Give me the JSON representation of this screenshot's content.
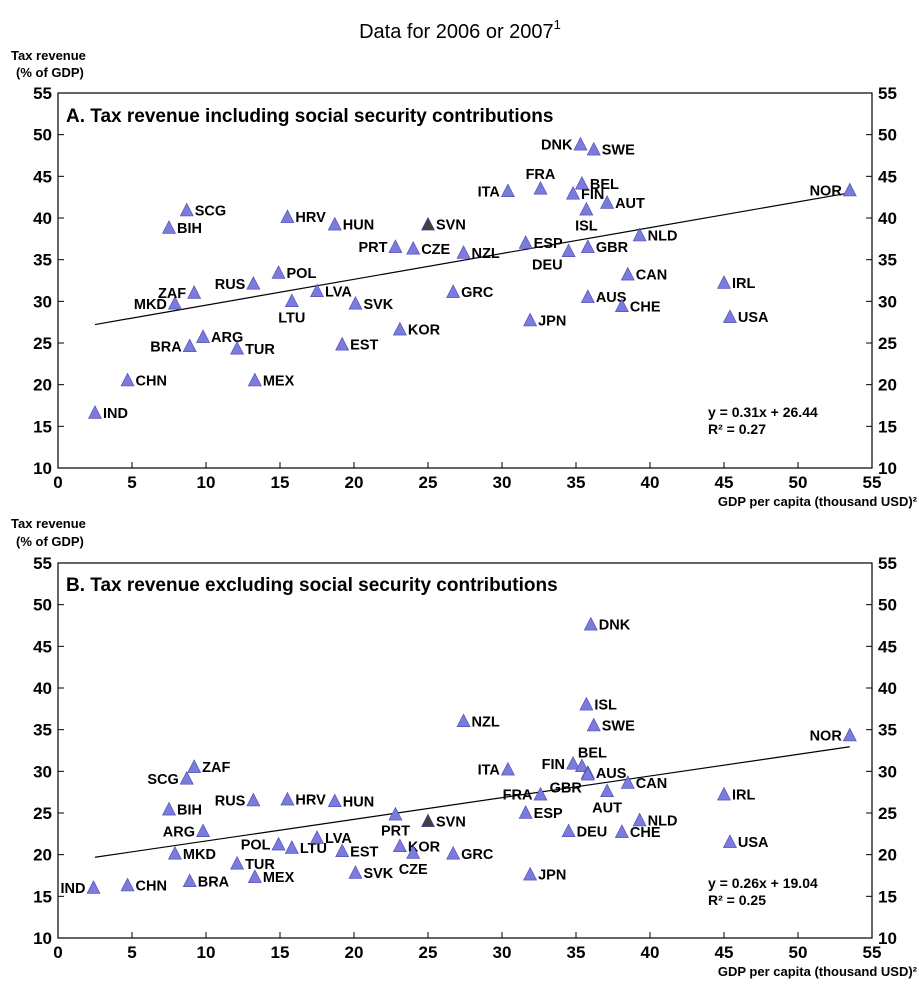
{
  "figure": {
    "title": "Data for 2006 or 2007",
    "title_sup": "1",
    "marker_color": "#7b7bde",
    "highlight_color": "#404040",
    "trend_color": "#000000"
  },
  "chart_data": [
    {
      "type": "scatter",
      "title": "A. Tax revenue including social security contributions",
      "ylabel_line1": "Tax revenue",
      "ylabel_line2": "(% of GDP)",
      "xlabel": "GDP per capita (thousand USD)²",
      "xlim": [
        0,
        55
      ],
      "ylim": [
        10,
        55
      ],
      "x_ticks": [
        0,
        5,
        10,
        15,
        20,
        25,
        30,
        35,
        40,
        45,
        50,
        55
      ],
      "y_ticks": [
        10,
        15,
        20,
        25,
        30,
        35,
        40,
        45,
        50,
        55
      ],
      "grid": false,
      "trendline": {
        "slope": 0.31,
        "intercept": 26.44,
        "x_range": [
          2.5,
          53.5
        ]
      },
      "equation": "y   = 0.31x + 26.44",
      "r_squared": "R² = 0.27",
      "points": [
        {
          "label": "IND",
          "x": 2.5,
          "y": 16.6,
          "pos": "right"
        },
        {
          "label": "CHN",
          "x": 4.7,
          "y": 20.5,
          "pos": "right"
        },
        {
          "label": "BIH",
          "x": 7.5,
          "y": 38.8,
          "pos": "right"
        },
        {
          "label": "MKD",
          "x": 7.9,
          "y": 29.7,
          "pos": "left"
        },
        {
          "label": "SCG",
          "x": 8.7,
          "y": 40.9,
          "pos": "right"
        },
        {
          "label": "BRA",
          "x": 8.9,
          "y": 24.6,
          "pos": "left"
        },
        {
          "label": "ZAF",
          "x": 9.2,
          "y": 31.0,
          "pos": "left"
        },
        {
          "label": "ARG",
          "x": 9.8,
          "y": 25.7,
          "pos": "right"
        },
        {
          "label": "TUR",
          "x": 12.1,
          "y": 24.3,
          "pos": "right"
        },
        {
          "label": "RUS",
          "x": 13.2,
          "y": 32.1,
          "pos": "left"
        },
        {
          "label": "MEX",
          "x": 13.3,
          "y": 20.5,
          "pos": "right"
        },
        {
          "label": "POL",
          "x": 14.9,
          "y": 33.4,
          "pos": "right"
        },
        {
          "label": "HRV",
          "x": 15.5,
          "y": 40.1,
          "pos": "right"
        },
        {
          "label": "LTU",
          "x": 15.8,
          "y": 30.0,
          "pos": "below"
        },
        {
          "label": "LVA",
          "x": 17.5,
          "y": 31.2,
          "pos": "right"
        },
        {
          "label": "HUN",
          "x": 18.7,
          "y": 39.2,
          "pos": "right"
        },
        {
          "label": "EST",
          "x": 19.2,
          "y": 24.8,
          "pos": "right"
        },
        {
          "label": "SVK",
          "x": 20.1,
          "y": 29.7,
          "pos": "right"
        },
        {
          "label": "PRT",
          "x": 22.8,
          "y": 36.5,
          "pos": "left"
        },
        {
          "label": "KOR",
          "x": 23.1,
          "y": 26.6,
          "pos": "right"
        },
        {
          "label": "CZE",
          "x": 24.0,
          "y": 36.3,
          "pos": "right"
        },
        {
          "label": "SVN",
          "x": 25.0,
          "y": 39.2,
          "pos": "right",
          "highlight": true
        },
        {
          "label": "GRC",
          "x": 26.7,
          "y": 31.1,
          "pos": "right"
        },
        {
          "label": "NZL",
          "x": 27.4,
          "y": 35.8,
          "pos": "right"
        },
        {
          "label": "ITA",
          "x": 30.4,
          "y": 43.2,
          "pos": "left"
        },
        {
          "label": "ESP",
          "x": 31.6,
          "y": 37.0,
          "pos": "right"
        },
        {
          "label": "JPN",
          "x": 31.9,
          "y": 27.7,
          "pos": "right"
        },
        {
          "label": "FRA",
          "x": 32.6,
          "y": 43.5,
          "pos": "above"
        },
        {
          "label": "DEU",
          "x": 34.5,
          "y": 36.0,
          "pos": "below-left"
        },
        {
          "label": "FIN",
          "x": 34.8,
          "y": 42.9,
          "pos": "right"
        },
        {
          "label": "DNK",
          "x": 35.3,
          "y": 48.8,
          "pos": "left"
        },
        {
          "label": "BEL",
          "x": 35.4,
          "y": 44.1,
          "pos": "right"
        },
        {
          "label": "ISL",
          "x": 35.7,
          "y": 41.0,
          "pos": "below"
        },
        {
          "label": "AUS",
          "x": 35.8,
          "y": 30.5,
          "pos": "right"
        },
        {
          "label": "GBR",
          "x": 35.8,
          "y": 36.5,
          "pos": "right"
        },
        {
          "label": "SWE",
          "x": 36.2,
          "y": 48.2,
          "pos": "right"
        },
        {
          "label": "AUT",
          "x": 37.1,
          "y": 41.8,
          "pos": "right"
        },
        {
          "label": "CHE",
          "x": 38.1,
          "y": 29.4,
          "pos": "right"
        },
        {
          "label": "CAN",
          "x": 38.5,
          "y": 33.2,
          "pos": "right"
        },
        {
          "label": "NLD",
          "x": 39.3,
          "y": 37.9,
          "pos": "right"
        },
        {
          "label": "IRL",
          "x": 45.0,
          "y": 32.2,
          "pos": "right"
        },
        {
          "label": "USA",
          "x": 45.4,
          "y": 28.1,
          "pos": "right"
        },
        {
          "label": "NOR",
          "x": 53.5,
          "y": 43.3,
          "pos": "left"
        }
      ]
    },
    {
      "type": "scatter",
      "title": "B. Tax revenue excluding social security contributions",
      "ylabel_line1": "Tax revenue",
      "ylabel_line2": "(% of GDP)",
      "xlabel": "GDP per capita (thousand USD)²",
      "xlim": [
        0,
        55
      ],
      "ylim": [
        10,
        55
      ],
      "x_ticks": [
        0,
        5,
        10,
        15,
        20,
        25,
        30,
        35,
        40,
        45,
        50,
        55
      ],
      "y_ticks": [
        10,
        15,
        20,
        25,
        30,
        35,
        40,
        45,
        50,
        55
      ],
      "grid": false,
      "trendline": {
        "slope": 0.26,
        "intercept": 19.04,
        "x_range": [
          2.5,
          53.5
        ]
      },
      "equation": "y   = 0.26x + 19.04",
      "r_squared": "R² = 0.25",
      "points": [
        {
          "label": "IND",
          "x": 2.4,
          "y": 16.0,
          "pos": "left"
        },
        {
          "label": "CHN",
          "x": 4.7,
          "y": 16.3,
          "pos": "right"
        },
        {
          "label": "BIH",
          "x": 7.5,
          "y": 25.4,
          "pos": "right"
        },
        {
          "label": "MKD",
          "x": 7.9,
          "y": 20.1,
          "pos": "right"
        },
        {
          "label": "SCG",
          "x": 8.7,
          "y": 29.1,
          "pos": "left"
        },
        {
          "label": "BRA",
          "x": 8.9,
          "y": 16.8,
          "pos": "right"
        },
        {
          "label": "ZAF",
          "x": 9.2,
          "y": 30.5,
          "pos": "right"
        },
        {
          "label": "ARG",
          "x": 9.8,
          "y": 22.8,
          "pos": "left"
        },
        {
          "label": "TUR",
          "x": 12.1,
          "y": 18.9,
          "pos": "right"
        },
        {
          "label": "RUS",
          "x": 13.2,
          "y": 26.5,
          "pos": "left"
        },
        {
          "label": "MEX",
          "x": 13.3,
          "y": 17.3,
          "pos": "right"
        },
        {
          "label": "POL",
          "x": 14.9,
          "y": 21.2,
          "pos": "left"
        },
        {
          "label": "HRV",
          "x": 15.5,
          "y": 26.6,
          "pos": "right"
        },
        {
          "label": "LTU",
          "x": 15.8,
          "y": 20.8,
          "pos": "right"
        },
        {
          "label": "LVA",
          "x": 17.5,
          "y": 22.0,
          "pos": "right"
        },
        {
          "label": "HUN",
          "x": 18.7,
          "y": 26.4,
          "pos": "right"
        },
        {
          "label": "EST",
          "x": 19.2,
          "y": 20.4,
          "pos": "right"
        },
        {
          "label": "SVK",
          "x": 20.1,
          "y": 17.8,
          "pos": "right"
        },
        {
          "label": "PRT",
          "x": 22.8,
          "y": 24.8,
          "pos": "below"
        },
        {
          "label": "KOR",
          "x": 23.1,
          "y": 21.0,
          "pos": "right"
        },
        {
          "label": "CZE",
          "x": 24.0,
          "y": 20.2,
          "pos": "below"
        },
        {
          "label": "SVN",
          "x": 25.0,
          "y": 24.0,
          "pos": "right",
          "highlight": true
        },
        {
          "label": "GRC",
          "x": 26.7,
          "y": 20.1,
          "pos": "right"
        },
        {
          "label": "NZL",
          "x": 27.4,
          "y": 36.0,
          "pos": "right"
        },
        {
          "label": "ITA",
          "x": 30.4,
          "y": 30.2,
          "pos": "left"
        },
        {
          "label": "ESP",
          "x": 31.6,
          "y": 25.0,
          "pos": "right"
        },
        {
          "label": "JPN",
          "x": 31.9,
          "y": 17.6,
          "pos": "right"
        },
        {
          "label": "FRA",
          "x": 32.6,
          "y": 27.2,
          "pos": "left"
        },
        {
          "label": "DEU",
          "x": 34.5,
          "y": 22.8,
          "pos": "right"
        },
        {
          "label": "FIN",
          "x": 34.8,
          "y": 30.9,
          "pos": "left"
        },
        {
          "label": "BEL",
          "x": 35.4,
          "y": 30.6,
          "pos": "above-right"
        },
        {
          "label": "ISL",
          "x": 35.7,
          "y": 38.0,
          "pos": "right"
        },
        {
          "label": "AUS",
          "x": 35.8,
          "y": 29.8,
          "pos": "right"
        },
        {
          "label": "GBR",
          "x": 35.8,
          "y": 29.6,
          "pos": "below-left"
        },
        {
          "label": "DNK",
          "x": 36.0,
          "y": 47.6,
          "pos": "right"
        },
        {
          "label": "SWE",
          "x": 36.2,
          "y": 35.5,
          "pos": "right"
        },
        {
          "label": "AUT",
          "x": 37.1,
          "y": 27.6,
          "pos": "below"
        },
        {
          "label": "CHE",
          "x": 38.1,
          "y": 22.7,
          "pos": "right"
        },
        {
          "label": "CAN",
          "x": 38.5,
          "y": 28.6,
          "pos": "right"
        },
        {
          "label": "NLD",
          "x": 39.3,
          "y": 24.1,
          "pos": "right"
        },
        {
          "label": "IRL",
          "x": 45.0,
          "y": 27.2,
          "pos": "right"
        },
        {
          "label": "USA",
          "x": 45.4,
          "y": 21.5,
          "pos": "right"
        },
        {
          "label": "NOR",
          "x": 53.5,
          "y": 34.3,
          "pos": "left"
        }
      ]
    }
  ]
}
